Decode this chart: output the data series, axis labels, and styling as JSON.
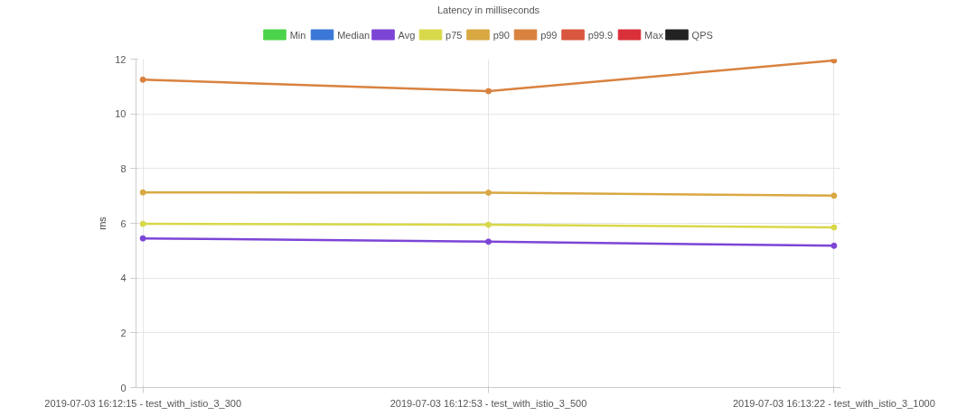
{
  "chart_data": {
    "type": "line",
    "title": "Latency in milliseconds",
    "ylabel": "ms",
    "categories": [
      "2019-07-03 16:12:15 - test_with_istio_3_300",
      "2019-07-03 16:12:53 - test_with_istio_3_500",
      "2019-07-03 16:13:22 - test_with_istio_3_1000"
    ],
    "series": [
      {
        "name": "Min",
        "color": "#4bd44b",
        "values": [
          null,
          null,
          null
        ]
      },
      {
        "name": "Median",
        "color": "#3a77d6",
        "values": [
          null,
          null,
          null
        ]
      },
      {
        "name": "Avg",
        "color": "#7c45d6",
        "values": [
          5.45,
          5.33,
          5.18
        ]
      },
      {
        "name": "p75",
        "color": "#d8d84a",
        "values": [
          5.98,
          5.95,
          5.85
        ]
      },
      {
        "name": "p90",
        "color": "#d9a843",
        "values": [
          7.13,
          7.12,
          7.01
        ]
      },
      {
        "name": "p99",
        "color": "#d9823f",
        "values": [
          11.25,
          10.83,
          11.95
        ]
      },
      {
        "name": "p99.9",
        "color": "#d9573f",
        "values": [
          null,
          null,
          null
        ]
      },
      {
        "name": "Max",
        "color": "#d9303a",
        "values": [
          null,
          null,
          null
        ]
      },
      {
        "name": "QPS",
        "color": "#222222",
        "values": [
          null,
          null,
          null
        ]
      }
    ],
    "ylim": [
      0,
      12
    ],
    "yticks": [
      0,
      2,
      4,
      6,
      8,
      10,
      12
    ],
    "grid": true,
    "legend": "top",
    "marker": "circle",
    "line_style": "solid"
  }
}
